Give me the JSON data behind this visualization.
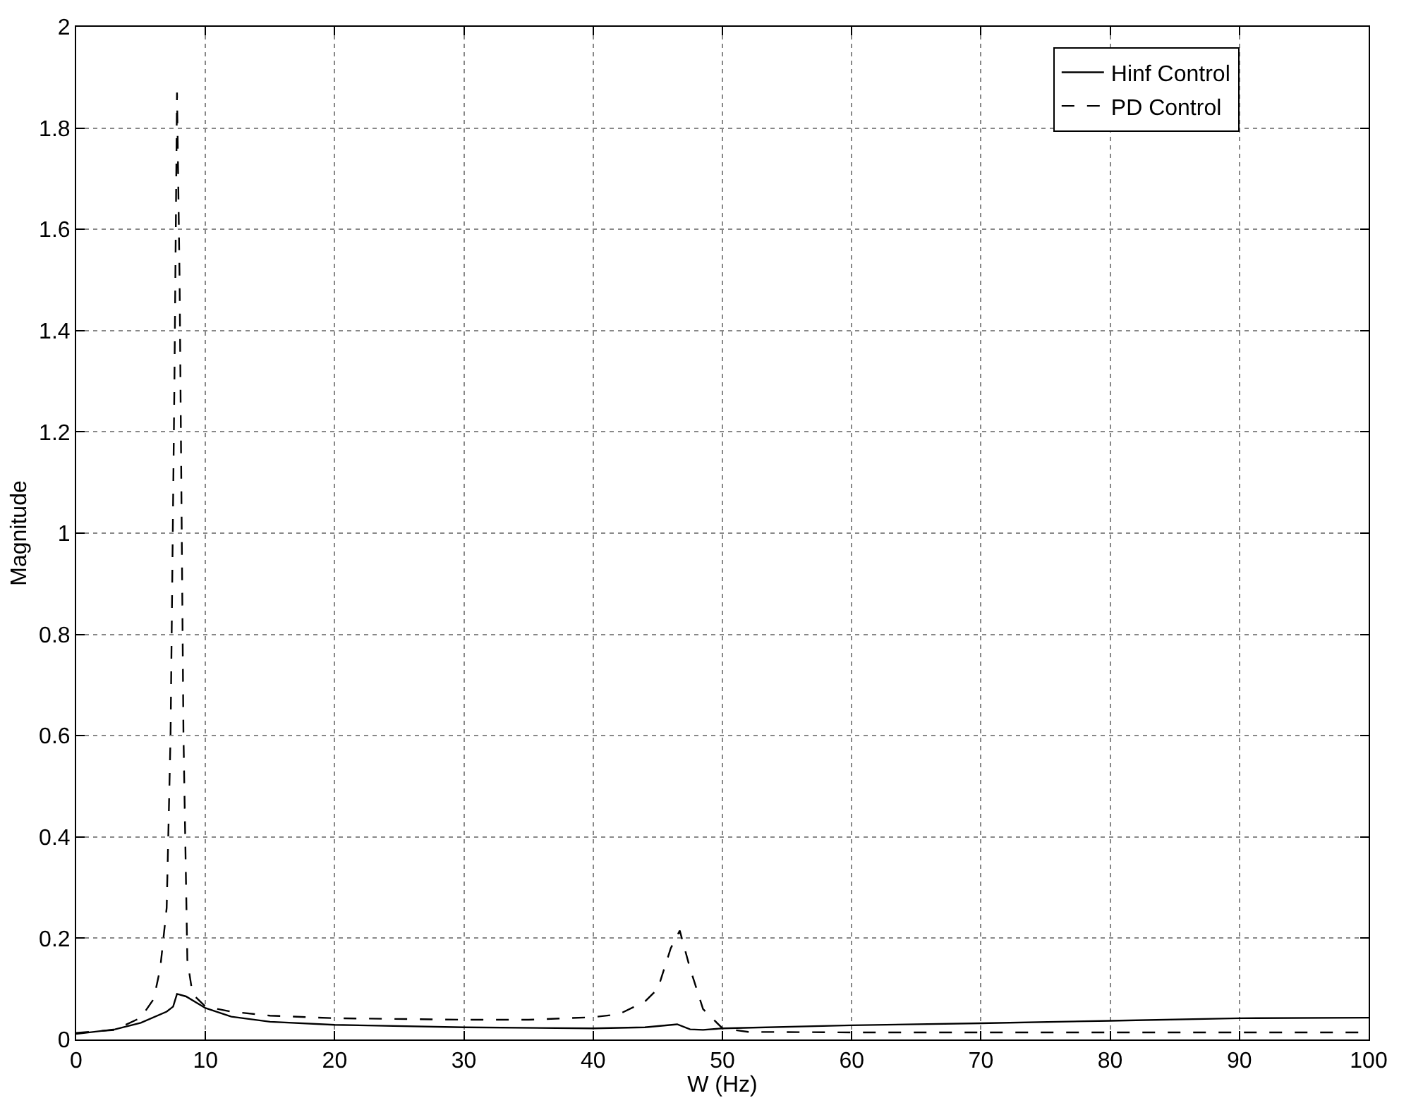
{
  "chart_data": {
    "type": "line",
    "xlabel": "W (Hz)",
    "ylabel": "Magnitude",
    "xlim": [
      0,
      100
    ],
    "xticks": [
      0,
      10,
      20,
      30,
      40,
      50,
      60,
      70,
      80,
      90,
      100
    ],
    "ylim": [
      0,
      2
    ],
    "yticks": [
      0,
      0.2,
      0.4,
      0.6,
      0.8,
      1,
      1.2,
      1.4,
      1.6,
      1.8,
      2
    ],
    "grid": true,
    "legend": "top right",
    "series": [
      {
        "name": "Hinf Control",
        "color": "#000000",
        "line_style": "solid",
        "x": [
          0,
          3,
          5,
          7,
          7.5,
          7.8,
          8.5,
          10,
          12,
          15,
          20,
          30,
          40,
          44,
          46.5,
          47.5,
          48.5,
          50,
          60,
          70,
          80,
          90,
          100
        ],
        "values": [
          0.011,
          0.02,
          0.033,
          0.055,
          0.065,
          0.09,
          0.085,
          0.062,
          0.045,
          0.035,
          0.029,
          0.024,
          0.022,
          0.024,
          0.03,
          0.02,
          0.019,
          0.022,
          0.028,
          0.032,
          0.037,
          0.042,
          0.043
        ]
      },
      {
        "name": "PD Control",
        "color": "#000000",
        "line_style": "dashed",
        "x": [
          0,
          3,
          5,
          6,
          6.5,
          7,
          7.3,
          7.6,
          7.8,
          8,
          8.3,
          8.6,
          9,
          10,
          12,
          15,
          20,
          30,
          35,
          40,
          42,
          44,
          45,
          46,
          46.7,
          47.5,
          48.5,
          50,
          52,
          60,
          70,
          80,
          90,
          100
        ],
        "values": [
          0.013,
          0.019,
          0.043,
          0.08,
          0.14,
          0.26,
          0.6,
          1.3,
          1.87,
          1.5,
          0.6,
          0.157,
          0.09,
          0.065,
          0.055,
          0.047,
          0.042,
          0.039,
          0.039,
          0.044,
          0.05,
          0.075,
          0.1,
          0.18,
          0.215,
          0.14,
          0.06,
          0.022,
          0.015,
          0.014,
          0.014,
          0.014,
          0.014,
          0.014
        ]
      }
    ]
  }
}
